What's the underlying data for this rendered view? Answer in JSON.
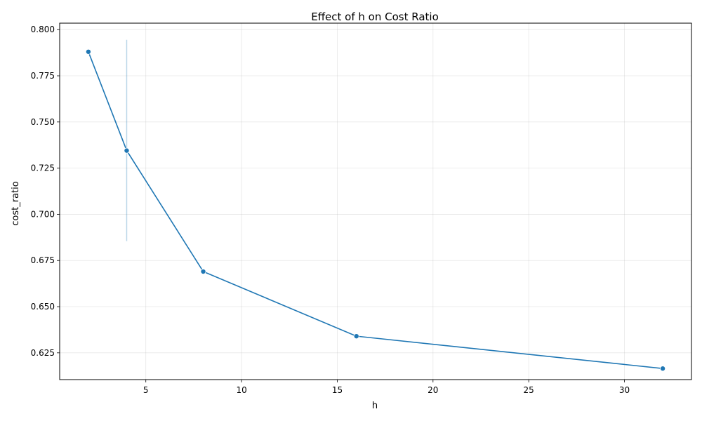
{
  "chart_data": {
    "type": "line",
    "title": "Effect of h on Cost Ratio",
    "xlabel": "h",
    "ylabel": "cost_ratio",
    "xlim": [
      0.5,
      33.5
    ],
    "ylim": [
      0.6105,
      0.8035
    ],
    "grid": true,
    "legend": "none",
    "x_ticks": [
      5,
      10,
      15,
      20,
      25,
      30
    ],
    "y_ticks": [
      0.625,
      0.65,
      0.675,
      0.7,
      0.725,
      0.75,
      0.775,
      0.8
    ],
    "x_tick_labels": [
      "5",
      "10",
      "15",
      "20",
      "25",
      "30"
    ],
    "y_tick_labels": [
      "0.625",
      "0.650",
      "0.675",
      "0.700",
      "0.725",
      "0.750",
      "0.775",
      "0.800"
    ],
    "series": [
      {
        "color": "#1f77b4",
        "x": [
          2,
          4,
          8,
          16,
          32
        ],
        "y": [
          0.788,
          0.7345,
          0.669,
          0.634,
          0.6165
        ],
        "error_band": [
          {
            "x": 4,
            "low": 0.6855,
            "high": 0.7945
          }
        ]
      }
    ]
  }
}
